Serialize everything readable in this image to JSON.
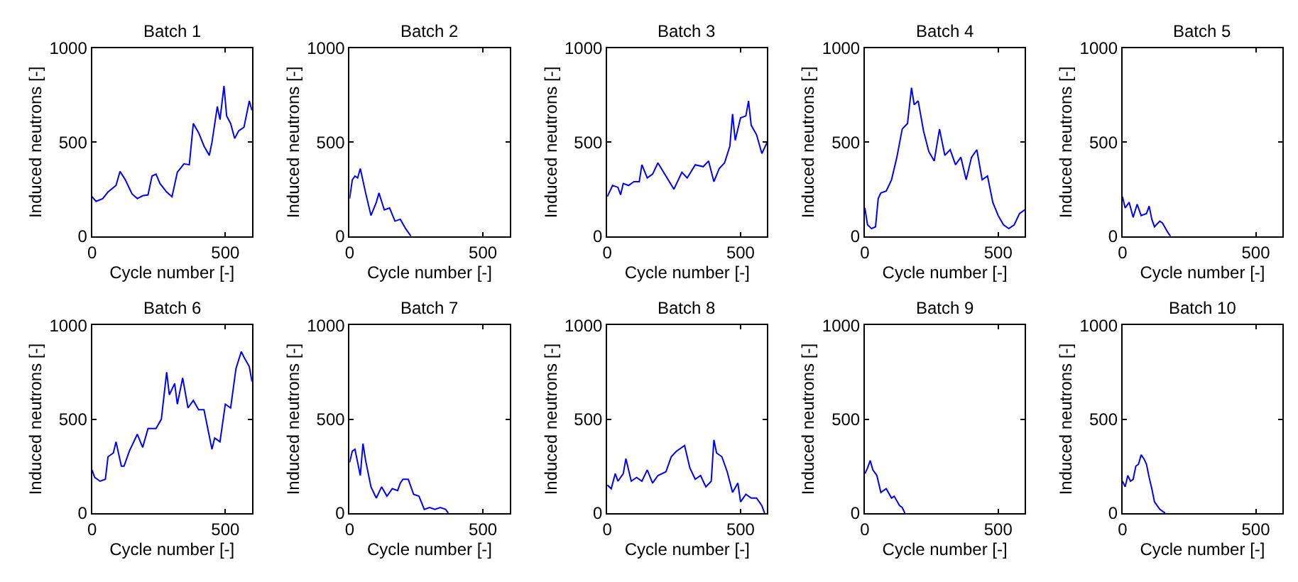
{
  "chart_data": [
    {
      "type": "line",
      "title": "Batch 1",
      "xlabel": "Cycle number [-]",
      "ylabel": "Induced neutrons [-]",
      "color": "#0000ff",
      "xlim": [
        0,
        600
      ],
      "ylim": [
        0,
        1000
      ],
      "xticks": [
        0,
        500
      ],
      "yticks": [
        0,
        500,
        1000
      ],
      "x": [
        0,
        15,
        40,
        60,
        90,
        105,
        125,
        150,
        170,
        190,
        210,
        225,
        240,
        255,
        280,
        300,
        320,
        345,
        365,
        380,
        400,
        420,
        440,
        450,
        470,
        480,
        495,
        505,
        520,
        535,
        550,
        570,
        590,
        600
      ],
      "values": [
        210,
        185,
        200,
        235,
        270,
        345,
        300,
        225,
        200,
        215,
        220,
        320,
        330,
        280,
        235,
        210,
        340,
        385,
        380,
        600,
        550,
        480,
        430,
        500,
        690,
        620,
        800,
        640,
        600,
        520,
        560,
        580,
        720,
        670
      ]
    },
    {
      "type": "line",
      "title": "Batch 2",
      "xlabel": "Cycle number [-]",
      "ylabel": "Induced neutrons [-]",
      "color": "#0000ff",
      "xlim": [
        0,
        600
      ],
      "ylim": [
        0,
        1000
      ],
      "xticks": [
        0,
        500
      ],
      "yticks": [
        0,
        500,
        1000
      ],
      "x": [
        0,
        10,
        20,
        30,
        40,
        60,
        80,
        100,
        110,
        130,
        150,
        170,
        190,
        210,
        230
      ],
      "values": [
        200,
        300,
        320,
        310,
        360,
        230,
        110,
        180,
        230,
        140,
        150,
        80,
        90,
        40,
        0
      ]
    },
    {
      "type": "line",
      "title": "Batch 3",
      "xlabel": "Cycle number [-]",
      "ylabel": "Induced neutrons [-]",
      "color": "#0000ff",
      "xlim": [
        0,
        600
      ],
      "ylim": [
        0,
        1000
      ],
      "xticks": [
        0,
        500
      ],
      "yticks": [
        0,
        500,
        1000
      ],
      "x": [
        0,
        20,
        40,
        50,
        60,
        80,
        100,
        120,
        130,
        150,
        170,
        190,
        220,
        250,
        280,
        300,
        330,
        360,
        380,
        400,
        420,
        440,
        460,
        470,
        480,
        500,
        520,
        530,
        540,
        560,
        580,
        600
      ],
      "values": [
        210,
        270,
        260,
        220,
        280,
        270,
        290,
        290,
        380,
        310,
        330,
        390,
        320,
        250,
        340,
        310,
        380,
        370,
        400,
        290,
        360,
        390,
        480,
        650,
        510,
        630,
        640,
        720,
        590,
        540,
        440,
        500
      ]
    },
    {
      "type": "line",
      "title": "Batch 4",
      "xlabel": "Cycle number [-]",
      "ylabel": "Induced neutrons [-]",
      "color": "#0000ff",
      "xlim": [
        0,
        600
      ],
      "ylim": [
        0,
        1000
      ],
      "xticks": [
        0,
        500
      ],
      "yticks": [
        0,
        500,
        1000
      ],
      "x": [
        0,
        10,
        25,
        40,
        50,
        60,
        80,
        100,
        120,
        140,
        160,
        175,
        185,
        200,
        220,
        240,
        260,
        280,
        300,
        320,
        340,
        360,
        380,
        400,
        420,
        440,
        460,
        480,
        500,
        520,
        540,
        560,
        580,
        600
      ],
      "values": [
        150,
        60,
        40,
        50,
        200,
        230,
        240,
        300,
        420,
        570,
        600,
        790,
        700,
        720,
        560,
        450,
        400,
        570,
        430,
        460,
        380,
        420,
        300,
        420,
        460,
        300,
        320,
        180,
        110,
        60,
        40,
        60,
        120,
        140
      ]
    },
    {
      "type": "line",
      "title": "Batch 5",
      "xlabel": "Cycle number [-]",
      "ylabel": "Induced neutrons [-]",
      "color": "#0000ff",
      "xlim": [
        0,
        600
      ],
      "ylim": [
        0,
        1000
      ],
      "xticks": [
        0,
        500
      ],
      "yticks": [
        0,
        500,
        1000
      ],
      "x": [
        0,
        10,
        25,
        40,
        55,
        70,
        90,
        100,
        110,
        120,
        140,
        150,
        170,
        180
      ],
      "values": [
        210,
        150,
        180,
        100,
        170,
        110,
        120,
        160,
        90,
        50,
        80,
        70,
        20,
        0
      ]
    },
    {
      "type": "line",
      "title": "Batch 6",
      "xlabel": "Cycle number [-]",
      "ylabel": "Induced neutrons [-]",
      "color": "#0000ff",
      "xlim": [
        0,
        600
      ],
      "ylim": [
        0,
        1000
      ],
      "xticks": [
        0,
        500
      ],
      "yticks": [
        0,
        500,
        1000
      ],
      "x": [
        0,
        10,
        30,
        50,
        60,
        80,
        90,
        110,
        120,
        140,
        170,
        190,
        210,
        240,
        260,
        280,
        290,
        310,
        320,
        340,
        360,
        380,
        400,
        420,
        440,
        450,
        460,
        480,
        500,
        520,
        540,
        560,
        570,
        590,
        600
      ],
      "values": [
        230,
        190,
        170,
        180,
        300,
        320,
        380,
        250,
        250,
        330,
        420,
        350,
        450,
        450,
        500,
        750,
        630,
        690,
        580,
        720,
        560,
        600,
        550,
        550,
        410,
        340,
        400,
        380,
        580,
        560,
        770,
        860,
        830,
        780,
        700
      ]
    },
    {
      "type": "line",
      "title": "Batch 7",
      "xlabel": "Cycle number [-]",
      "ylabel": "Induced neutrons [-]",
      "color": "#0000ff",
      "xlim": [
        0,
        600
      ],
      "ylim": [
        0,
        1000
      ],
      "xticks": [
        0,
        500
      ],
      "yticks": [
        0,
        500,
        1000
      ],
      "x": [
        0,
        10,
        20,
        40,
        50,
        60,
        80,
        100,
        120,
        140,
        160,
        180,
        190,
        200,
        220,
        240,
        260,
        280,
        300,
        320,
        340,
        360,
        370
      ],
      "values": [
        270,
        330,
        340,
        200,
        370,
        280,
        140,
        80,
        140,
        90,
        130,
        120,
        160,
        180,
        180,
        100,
        90,
        20,
        30,
        20,
        30,
        20,
        0
      ]
    },
    {
      "type": "line",
      "title": "Batch 8",
      "xlabel": "Cycle number [-]",
      "ylabel": "Induced neutrons [-]",
      "color": "#0000ff",
      "xlim": [
        0,
        600
      ],
      "ylim": [
        0,
        1000
      ],
      "xticks": [
        0,
        500
      ],
      "yticks": [
        0,
        500,
        1000
      ],
      "x": [
        0,
        15,
        30,
        40,
        60,
        70,
        90,
        110,
        130,
        150,
        170,
        190,
        220,
        240,
        260,
        270,
        290,
        300,
        310,
        330,
        350,
        370,
        390,
        400,
        410,
        430,
        450,
        470,
        490,
        500,
        520,
        540,
        560,
        580,
        590
      ],
      "values": [
        150,
        130,
        210,
        170,
        210,
        290,
        170,
        190,
        170,
        230,
        160,
        200,
        220,
        300,
        330,
        340,
        360,
        300,
        240,
        180,
        200,
        140,
        170,
        390,
        320,
        300,
        220,
        110,
        160,
        60,
        100,
        80,
        80,
        40,
        0
      ]
    },
    {
      "type": "line",
      "title": "Batch 9",
      "xlabel": "Cycle number [-]",
      "ylabel": "Induced neutrons [-]",
      "color": "#0000ff",
      "xlim": [
        0,
        600
      ],
      "ylim": [
        0,
        1000
      ],
      "xticks": [
        0,
        500
      ],
      "yticks": [
        0,
        500,
        1000
      ],
      "x": [
        0,
        10,
        20,
        30,
        45,
        60,
        80,
        100,
        110,
        130,
        140,
        150
      ],
      "values": [
        210,
        240,
        280,
        230,
        200,
        110,
        130,
        80,
        90,
        40,
        30,
        0
      ]
    },
    {
      "type": "line",
      "title": "Batch 10",
      "xlabel": "Cycle number [-]",
      "ylabel": "Induced neutrons [-]",
      "color": "#0000ff",
      "xlim": [
        0,
        600
      ],
      "ylim": [
        0,
        1000
      ],
      "xticks": [
        0,
        500
      ],
      "yticks": [
        0,
        500,
        1000
      ],
      "x": [
        0,
        10,
        20,
        30,
        40,
        50,
        60,
        70,
        80,
        90,
        100,
        110,
        120,
        140,
        160
      ],
      "values": [
        170,
        140,
        200,
        170,
        180,
        250,
        260,
        310,
        290,
        260,
        190,
        130,
        60,
        20,
        0
      ]
    }
  ]
}
